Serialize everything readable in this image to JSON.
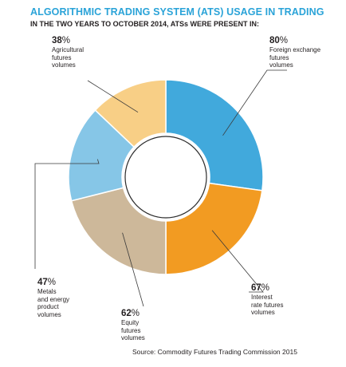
{
  "header": {
    "title": "ALGORITHMIC TRADING SYSTEM (ATS) USAGE IN TRADING",
    "subtitle": "IN THE TWO YEARS TO OCTOBER 2014, ATSs WERE PRESENT IN:"
  },
  "source": "Source: Commodity Futures Trading Commission 2015",
  "chart_data": {
    "type": "pie",
    "donut": true,
    "slices": [
      {
        "name": "Foreign exchange futures volumes",
        "value": 80,
        "value_label": "80",
        "desc": "Foreign exchange\nfutures\nvolumes",
        "color": "#41a9dc"
      },
      {
        "name": "Interest rate futures volumes",
        "value": 67,
        "value_label": "67",
        "desc": "Interest\nrate futures\nvolumes",
        "color": "#f29b22"
      },
      {
        "name": "Equity futures volumes",
        "value": 62,
        "value_label": "62",
        "desc": "Equity\nfutures\nvolumes",
        "color": "#cdb89a"
      },
      {
        "name": "Metals and energy product volumes",
        "value": 47,
        "value_label": "47",
        "desc": "Metals\nand energy\nproduct\nvolumes",
        "color": "#86c6e7"
      },
      {
        "name": "Agricultural futures volumes",
        "value": 38,
        "value_label": "38",
        "desc": "Agricultural\nfutures\nvolumes",
        "color": "#f8cf86"
      }
    ],
    "unit": "%"
  }
}
